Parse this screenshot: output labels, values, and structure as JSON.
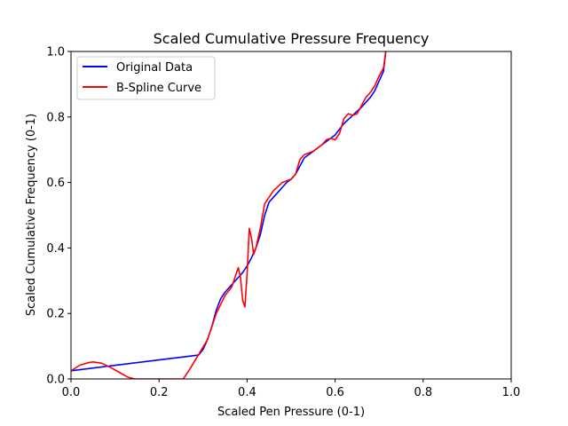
{
  "chart_data": {
    "type": "line",
    "title": "Scaled Cumulative Pressure Frequency",
    "xlabel": "Scaled Pen Pressure (0-1)",
    "ylabel": "Scaled Cumulative Frequency (0-1)",
    "xlim": [
      0,
      1
    ],
    "ylim": [
      0,
      1
    ],
    "xticks": [
      "0.0",
      "0.2",
      "0.4",
      "0.6",
      "0.8",
      "1.0"
    ],
    "yticks": [
      "0.0",
      "0.2",
      "0.4",
      "0.6",
      "0.8",
      "1.0"
    ],
    "grid": false,
    "legend_position": "top-left",
    "series": [
      {
        "name": "Original Data",
        "color": "#0000ff",
        "x": [
          0.0,
          0.29,
          0.3,
          0.31,
          0.32,
          0.33,
          0.34,
          0.35,
          0.36,
          0.37,
          0.38,
          0.39,
          0.4,
          0.41,
          0.42,
          0.43,
          0.44,
          0.45,
          0.46,
          0.47,
          0.48,
          0.49,
          0.5,
          0.51,
          0.52,
          0.53,
          0.54,
          0.55,
          0.56,
          0.57,
          0.58,
          0.59,
          0.6,
          0.62,
          0.64,
          0.66,
          0.67,
          0.68,
          0.69,
          0.7,
          0.71,
          0.715
        ],
        "y": [
          0.025,
          0.073,
          0.09,
          0.12,
          0.16,
          0.21,
          0.245,
          0.265,
          0.28,
          0.295,
          0.31,
          0.325,
          0.345,
          0.37,
          0.4,
          0.44,
          0.5,
          0.54,
          0.555,
          0.57,
          0.585,
          0.6,
          0.61,
          0.625,
          0.65,
          0.675,
          0.685,
          0.695,
          0.705,
          0.715,
          0.725,
          0.735,
          0.745,
          0.78,
          0.805,
          0.83,
          0.845,
          0.86,
          0.88,
          0.91,
          0.94,
          1.0
        ]
      },
      {
        "name": "B-Spline Curve",
        "color": "#ff0000",
        "x": [
          0.0,
          0.02,
          0.04,
          0.05,
          0.07,
          0.09,
          0.11,
          0.13,
          0.145,
          0.255,
          0.27,
          0.29,
          0.31,
          0.33,
          0.35,
          0.365,
          0.375,
          0.38,
          0.385,
          0.39,
          0.395,
          0.4,
          0.405,
          0.41,
          0.415,
          0.42,
          0.43,
          0.44,
          0.46,
          0.48,
          0.5,
          0.51,
          0.52,
          0.53,
          0.55,
          0.57,
          0.58,
          0.59,
          0.6,
          0.61,
          0.62,
          0.63,
          0.64,
          0.65,
          0.66,
          0.67,
          0.68,
          0.69,
          0.7,
          0.71,
          0.715
        ],
        "y": [
          0.025,
          0.042,
          0.05,
          0.052,
          0.048,
          0.035,
          0.02,
          0.005,
          0.0,
          0.0,
          0.03,
          0.075,
          0.12,
          0.2,
          0.255,
          0.28,
          0.32,
          0.34,
          0.31,
          0.24,
          0.22,
          0.32,
          0.46,
          0.43,
          0.38,
          0.4,
          0.46,
          0.535,
          0.575,
          0.6,
          0.61,
          0.625,
          0.67,
          0.685,
          0.695,
          0.715,
          0.73,
          0.735,
          0.73,
          0.75,
          0.795,
          0.81,
          0.805,
          0.81,
          0.835,
          0.86,
          0.875,
          0.895,
          0.925,
          0.95,
          1.0
        ]
      }
    ]
  }
}
